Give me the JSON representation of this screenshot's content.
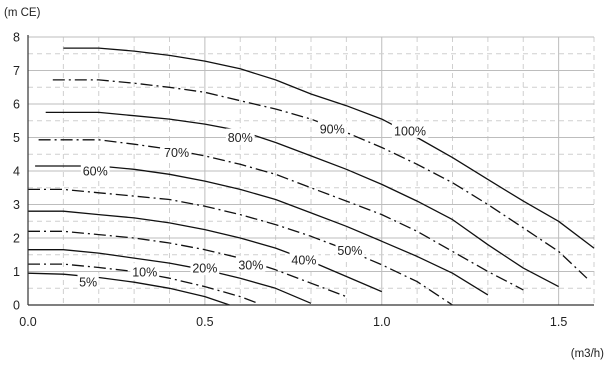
{
  "chart_data": {
    "type": "line",
    "title": "",
    "xlabel": "(m3/h)",
    "ylabel": "(m CE)",
    "xlim": [
      0,
      1.6
    ],
    "ylim": [
      0,
      8
    ],
    "grid": true,
    "x_ticks": [
      "0.0",
      "0.5",
      "1.0",
      "1.5"
    ],
    "y_ticks": [
      "0",
      "1",
      "2",
      "3",
      "4",
      "5",
      "6",
      "7",
      "8"
    ],
    "series": [
      {
        "name": "100%",
        "style": "solid",
        "label_at": [
          1.08,
          5.2
        ],
        "points": [
          [
            0.1,
            7.67
          ],
          [
            0.2,
            7.67
          ],
          [
            0.3,
            7.58
          ],
          [
            0.4,
            7.45
          ],
          [
            0.5,
            7.28
          ],
          [
            0.6,
            7.05
          ],
          [
            0.7,
            6.72
          ],
          [
            0.8,
            6.3
          ],
          [
            0.9,
            5.95
          ],
          [
            1.0,
            5.55
          ],
          [
            1.1,
            5.0
          ],
          [
            1.2,
            4.4
          ],
          [
            1.3,
            3.75
          ],
          [
            1.4,
            3.1
          ],
          [
            1.5,
            2.5
          ],
          [
            1.6,
            1.7
          ]
        ]
      },
      {
        "name": "90%",
        "style": "dashdot",
        "label_at": [
          0.86,
          5.25
        ],
        "points": [
          [
            0.07,
            6.72
          ],
          [
            0.2,
            6.72
          ],
          [
            0.3,
            6.62
          ],
          [
            0.4,
            6.5
          ],
          [
            0.5,
            6.35
          ],
          [
            0.6,
            6.1
          ],
          [
            0.7,
            5.85
          ],
          [
            0.8,
            5.55
          ],
          [
            0.9,
            5.15
          ],
          [
            1.0,
            4.7
          ],
          [
            1.1,
            4.2
          ],
          [
            1.2,
            3.65
          ],
          [
            1.3,
            3.0
          ],
          [
            1.4,
            2.3
          ],
          [
            1.5,
            1.6
          ],
          [
            1.58,
            0.8
          ]
        ]
      },
      {
        "name": "80%",
        "style": "solid",
        "label_at": [
          0.6,
          5.0
        ],
        "points": [
          [
            0.05,
            5.75
          ],
          [
            0.2,
            5.75
          ],
          [
            0.3,
            5.65
          ],
          [
            0.4,
            5.55
          ],
          [
            0.5,
            5.4
          ],
          [
            0.6,
            5.2
          ],
          [
            0.7,
            4.85
          ],
          [
            0.8,
            4.45
          ],
          [
            0.9,
            4.05
          ],
          [
            1.0,
            3.6
          ],
          [
            1.1,
            3.1
          ],
          [
            1.2,
            2.55
          ],
          [
            1.3,
            1.8
          ],
          [
            1.4,
            1.1
          ],
          [
            1.5,
            0.55
          ]
        ]
      },
      {
        "name": "70%",
        "style": "dashdot",
        "label_at": [
          0.42,
          4.55
        ],
        "points": [
          [
            0.03,
            4.93
          ],
          [
            0.2,
            4.93
          ],
          [
            0.3,
            4.8
          ],
          [
            0.4,
            4.65
          ],
          [
            0.5,
            4.45
          ],
          [
            0.6,
            4.2
          ],
          [
            0.7,
            3.9
          ],
          [
            0.8,
            3.5
          ],
          [
            0.9,
            3.1
          ],
          [
            1.0,
            2.7
          ],
          [
            1.1,
            2.2
          ],
          [
            1.2,
            1.6
          ],
          [
            1.3,
            1.0
          ],
          [
            1.4,
            0.45
          ]
        ]
      },
      {
        "name": "60%",
        "style": "solid",
        "label_at": [
          0.19,
          4.0
        ],
        "points": [
          [
            0.02,
            4.15
          ],
          [
            0.2,
            4.15
          ],
          [
            0.3,
            4.05
          ],
          [
            0.4,
            3.9
          ],
          [
            0.5,
            3.7
          ],
          [
            0.6,
            3.45
          ],
          [
            0.7,
            3.15
          ],
          [
            0.8,
            2.75
          ],
          [
            0.9,
            2.35
          ],
          [
            1.0,
            1.9
          ],
          [
            1.1,
            1.45
          ],
          [
            1.2,
            0.95
          ],
          [
            1.3,
            0.3
          ]
        ]
      },
      {
        "name": "50%",
        "style": "dashdot",
        "label_at": [
          0.91,
          1.62
        ],
        "points": [
          [
            0.0,
            3.45
          ],
          [
            0.1,
            3.45
          ],
          [
            0.2,
            3.35
          ],
          [
            0.3,
            3.25
          ],
          [
            0.4,
            3.15
          ],
          [
            0.5,
            2.95
          ],
          [
            0.6,
            2.7
          ],
          [
            0.7,
            2.4
          ],
          [
            0.8,
            2.05
          ],
          [
            0.9,
            1.65
          ],
          [
            1.0,
            1.2
          ],
          [
            1.1,
            0.7
          ],
          [
            1.2,
            0.0
          ]
        ]
      },
      {
        "name": "40%",
        "style": "solid",
        "label_at": [
          0.78,
          1.35
        ],
        "points": [
          [
            0.0,
            2.8
          ],
          [
            0.1,
            2.8
          ],
          [
            0.2,
            2.7
          ],
          [
            0.3,
            2.6
          ],
          [
            0.4,
            2.45
          ],
          [
            0.5,
            2.25
          ],
          [
            0.6,
            2.0
          ],
          [
            0.7,
            1.7
          ],
          [
            0.8,
            1.3
          ],
          [
            0.9,
            0.85
          ],
          [
            1.0,
            0.4
          ]
        ]
      },
      {
        "name": "30%",
        "style": "dashdot",
        "label_at": [
          0.63,
          1.2
        ],
        "points": [
          [
            0.0,
            2.2
          ],
          [
            0.1,
            2.2
          ],
          [
            0.2,
            2.1
          ],
          [
            0.3,
            2.0
          ],
          [
            0.4,
            1.85
          ],
          [
            0.5,
            1.65
          ],
          [
            0.6,
            1.4
          ],
          [
            0.7,
            1.05
          ],
          [
            0.8,
            0.65
          ],
          [
            0.9,
            0.25
          ]
        ]
      },
      {
        "name": "20%",
        "style": "solid",
        "label_at": [
          0.5,
          1.1
        ],
        "points": [
          [
            0.0,
            1.65
          ],
          [
            0.1,
            1.65
          ],
          [
            0.2,
            1.55
          ],
          [
            0.3,
            1.4
          ],
          [
            0.4,
            1.25
          ],
          [
            0.5,
            1.05
          ],
          [
            0.6,
            0.8
          ],
          [
            0.7,
            0.5
          ],
          [
            0.8,
            0.05
          ]
        ]
      },
      {
        "name": "10%",
        "style": "dashdot",
        "label_at": [
          0.33,
          0.98
        ],
        "points": [
          [
            0.0,
            1.22
          ],
          [
            0.1,
            1.22
          ],
          [
            0.2,
            1.12
          ],
          [
            0.3,
            1.0
          ],
          [
            0.4,
            0.8
          ],
          [
            0.5,
            0.55
          ],
          [
            0.6,
            0.25
          ],
          [
            0.65,
            0.05
          ]
        ]
      },
      {
        "name": "5%",
        "style": "solid",
        "label_at": [
          0.17,
          0.68
        ],
        "points": [
          [
            0.0,
            0.95
          ],
          [
            0.1,
            0.92
          ],
          [
            0.2,
            0.82
          ],
          [
            0.3,
            0.68
          ],
          [
            0.4,
            0.5
          ],
          [
            0.5,
            0.25
          ],
          [
            0.57,
            0.0
          ]
        ]
      }
    ]
  }
}
